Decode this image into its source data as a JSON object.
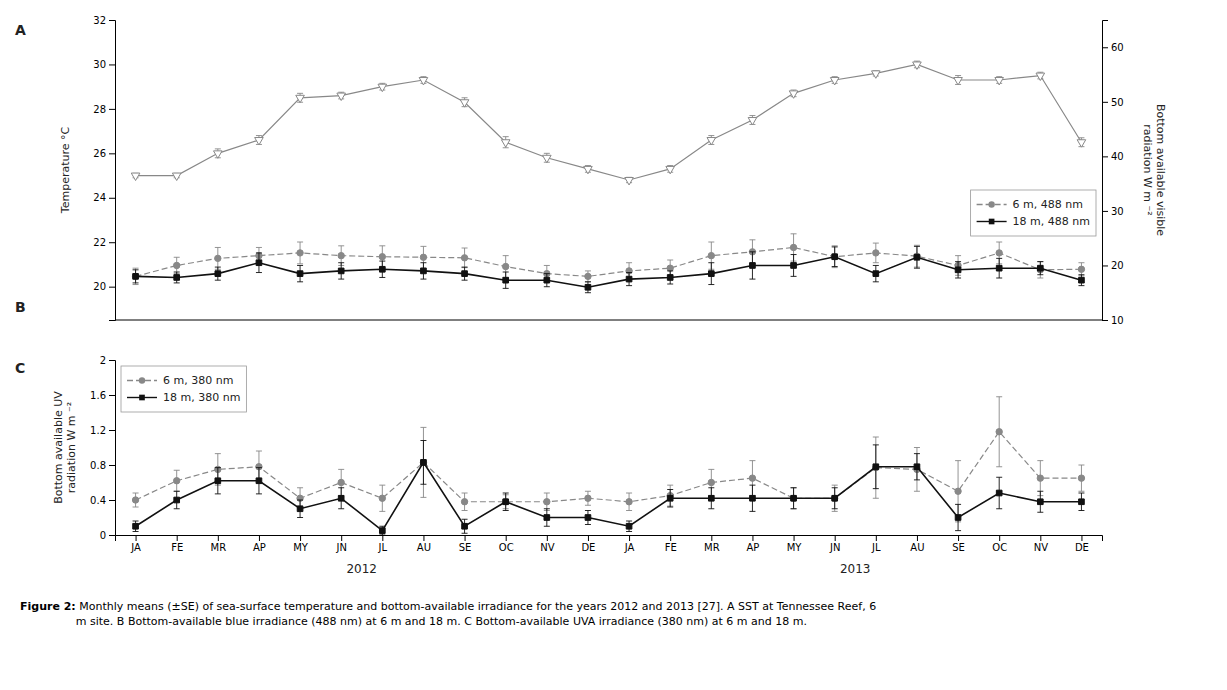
{
  "chart_data": [
    {
      "type": "line",
      "categories": [
        "JA",
        "FE",
        "MR",
        "AP",
        "MY",
        "JN",
        "JL",
        "AU",
        "SE",
        "OC",
        "NV",
        "DE",
        "JA",
        "FE",
        "MR",
        "AP",
        "MY",
        "JN",
        "JL",
        "AU",
        "SE",
        "OC",
        "NV",
        "DE"
      ],
      "ylabel": "Temperature °C",
      "y2label": "Bottom available visible\nradiation W m ⁻²",
      "ylim": [
        18.5,
        32
      ],
      "yticks": [
        20,
        22,
        24,
        26,
        28,
        30,
        32
      ],
      "y2lim": [
        10,
        65
      ],
      "y2ticks": [
        10,
        20,
        30,
        40,
        50,
        60
      ],
      "series": [
        {
          "color": "#888888",
          "marker": "triangle-down",
          "line_style": "solid",
          "values": [
            25.0,
            25.0,
            26.0,
            26.6,
            28.5,
            28.6,
            29.0,
            29.3,
            28.3,
            26.5,
            25.8,
            25.3,
            24.8,
            25.3,
            26.6,
            27.5,
            28.7,
            29.3,
            29.6,
            30.0,
            29.3,
            29.3,
            29.5,
            26.5
          ],
          "errors": [
            0.1,
            0.1,
            0.2,
            0.2,
            0.2,
            0.15,
            0.15,
            0.15,
            0.2,
            0.25,
            0.2,
            0.15,
            0.12,
            0.15,
            0.2,
            0.2,
            0.15,
            0.15,
            0.12,
            0.15,
            0.2,
            0.15,
            0.15,
            0.2
          ]
        },
        {
          "name": "6 m, 488 nm",
          "axis": "y2",
          "color": "#888888",
          "marker": "circle",
          "line_style": "dashed",
          "values": [
            18.0,
            20.0,
            21.3,
            21.8,
            22.3,
            21.8,
            21.6,
            21.5,
            21.4,
            19.8,
            18.5,
            18.0,
            19.0,
            19.5,
            21.8,
            22.5,
            23.3,
            21.6,
            22.3,
            21.7,
            20.0,
            22.3,
            19.2,
            19.3
          ],
          "errors": [
            1.5,
            1.5,
            2.0,
            1.5,
            2.0,
            1.8,
            2.0,
            2.0,
            1.8,
            2.0,
            1.5,
            1.0,
            1.5,
            1.5,
            2.5,
            2.2,
            2.5,
            2.0,
            1.8,
            2.0,
            1.8,
            2.0,
            1.5,
            1.2
          ]
        },
        {
          "name": "18 m, 488 nm",
          "axis": "y2",
          "color": "#111111",
          "marker": "square",
          "line_style": "solid",
          "values": [
            18.0,
            17.8,
            18.5,
            20.5,
            18.5,
            19.0,
            19.3,
            19.0,
            18.5,
            17.3,
            17.3,
            16.0,
            17.5,
            17.8,
            18.5,
            20.0,
            20.0,
            21.6,
            18.5,
            21.5,
            19.2,
            19.5,
            19.5,
            17.3
          ],
          "errors": [
            1.2,
            1.0,
            1.2,
            1.8,
            1.5,
            1.5,
            1.5,
            1.5,
            1.2,
            1.5,
            1.2,
            1.0,
            1.2,
            1.2,
            2.0,
            2.5,
            2.0,
            1.8,
            1.5,
            2.0,
            1.5,
            1.8,
            1.2,
            1.0
          ]
        }
      ],
      "legend": "lower right",
      "grid": false,
      "tick_labels": "y",
      "annotations": [
        "A",
        "B"
      ]
    },
    {
      "type": "line",
      "categories": [
        "JA",
        "FE",
        "MR",
        "AP",
        "MY",
        "JN",
        "JL",
        "AU",
        "SE",
        "OC",
        "NV",
        "DE",
        "JA",
        "FE",
        "MR",
        "AP",
        "MY",
        "JN",
        "JL",
        "AU",
        "SE",
        "OC",
        "NV",
        "DE"
      ],
      "ylabel": "Bottom available UV\nradiation W m ⁻²",
      "ylim": [
        0,
        2
      ],
      "yticks": [
        0,
        0.4,
        0.8,
        1.2,
        1.6,
        2
      ],
      "series": [
        {
          "name": "6 m, 380 nm",
          "color": "#888888",
          "marker": "circle",
          "line_style": "dashed",
          "values": [
            0.4,
            0.62,
            0.75,
            0.78,
            0.42,
            0.6,
            0.42,
            0.83,
            0.38,
            0.38,
            0.38,
            0.42,
            0.38,
            0.45,
            0.6,
            0.65,
            0.42,
            0.42,
            0.77,
            0.75,
            0.5,
            1.18,
            0.65,
            0.65
          ],
          "errors": [
            0.08,
            0.12,
            0.18,
            0.18,
            0.12,
            0.15,
            0.15,
            0.4,
            0.1,
            0.08,
            0.1,
            0.08,
            0.1,
            0.12,
            0.15,
            0.2,
            0.12,
            0.15,
            0.35,
            0.25,
            0.35,
            0.4,
            0.2,
            0.15
          ]
        },
        {
          "name": "18 m, 380 nm",
          "color": "#111111",
          "marker": "square",
          "line_style": "solid",
          "values": [
            0.1,
            0.4,
            0.62,
            0.62,
            0.3,
            0.42,
            0.05,
            0.83,
            0.1,
            0.38,
            0.2,
            0.2,
            0.1,
            0.42,
            0.42,
            0.42,
            0.42,
            0.42,
            0.78,
            0.78,
            0.2,
            0.48,
            0.38,
            0.38
          ],
          "errors": [
            0.06,
            0.1,
            0.15,
            0.15,
            0.1,
            0.12,
            0.05,
            0.25,
            0.08,
            0.1,
            0.1,
            0.08,
            0.06,
            0.1,
            0.12,
            0.15,
            0.12,
            0.12,
            0.25,
            0.15,
            0.15,
            0.18,
            0.12,
            0.1
          ]
        }
      ],
      "legend": "upper left",
      "grid": false,
      "annotations": [
        "C",
        "2012",
        "2013"
      ]
    }
  ],
  "caption": [
    "Figure 2:",
    " Monthly means (±SE) of sea-surface temperature and bottom-available irradiance for the years 2012 and 2013 [27]. A SST at Tennessee Reef, 6\nm site. B Bottom-available blue irradiance (488 nm) at 6 m and 18 m. C Bottom-available UVA irradiance (380 nm) at 6 m and 18 m."
  ]
}
